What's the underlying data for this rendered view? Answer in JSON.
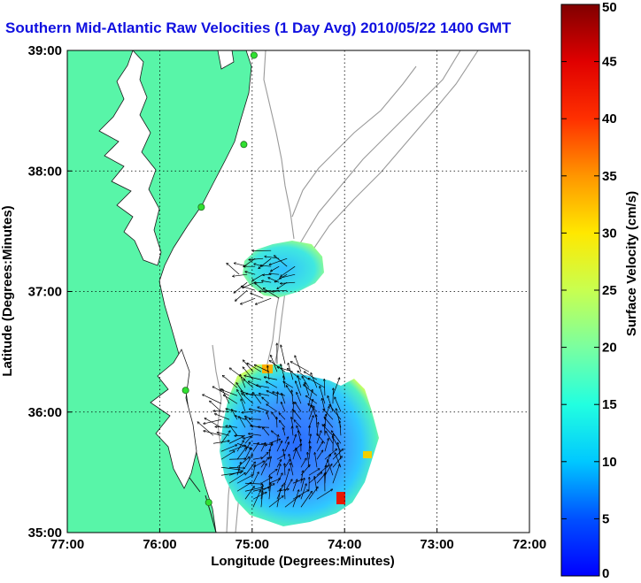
{
  "title": "Southern Mid-Atlantic Raw Velocities (1 Day Avg) 2010/05/22 1400 GMT",
  "map": {
    "xlabel": "Longitude (Degrees:Minutes)",
    "ylabel": "Latitude (Degrees:Minutes)",
    "lon_range": [
      -77,
      -72
    ],
    "lat_range": [
      35,
      39
    ],
    "x_ticks": [
      {
        "value": -77,
        "label": "77:00"
      },
      {
        "value": -76,
        "label": "76:00"
      },
      {
        "value": -75,
        "label": "75:00"
      },
      {
        "value": -74,
        "label": "74:00"
      },
      {
        "value": -73,
        "label": "73:00"
      },
      {
        "value": -72,
        "label": "72:00"
      }
    ],
    "y_ticks": [
      {
        "value": 39,
        "label": "39:00"
      },
      {
        "value": 38,
        "label": "38:00"
      },
      {
        "value": 37,
        "label": "37:00"
      },
      {
        "value": 36,
        "label": "36:00"
      },
      {
        "value": 35,
        "label": "35:00"
      }
    ],
    "grid": "dotted",
    "land_color": "#58f5a8",
    "water_color": "#ffffff",
    "contour_color": "#9a9a9a",
    "stations": [
      {
        "lon": -74.98,
        "lat": 38.96
      },
      {
        "lon": -75.09,
        "lat": 38.22
      },
      {
        "lon": -75.55,
        "lat": 37.7
      },
      {
        "lon": -75.72,
        "lat": 36.18
      },
      {
        "lon": -75.47,
        "lat": 35.25
      }
    ],
    "coverage_regions": [
      {
        "name": "northern-patch",
        "center_lon": -74.82,
        "center_lat": 37.12,
        "radius_lon": 0.32,
        "radius_lat": 0.22
      },
      {
        "name": "southern-patch",
        "center_lon": -74.7,
        "center_lat": 35.78,
        "radius_lon": 0.72,
        "radius_lat": 0.62
      }
    ]
  },
  "colorbar": {
    "label": "Surface Velocity (cm/s)",
    "min": 0,
    "max": 50,
    "ticks": [
      0,
      5,
      10,
      15,
      20,
      25,
      30,
      35,
      40,
      45,
      50
    ],
    "colormap": "jet"
  }
}
